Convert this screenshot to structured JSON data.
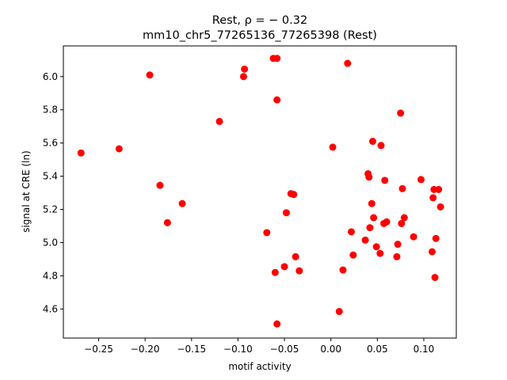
{
  "chart_data": {
    "type": "scatter",
    "title_main": "Rest, ρ = − 0.32",
    "title_sub": "mm10_chr5_77265136_77265398 (Rest)",
    "xlabel": "motif activity",
    "ylabel": "signal at CRE (ln)",
    "xlim": [
      -0.288,
      0.135
    ],
    "ylim": [
      4.425,
      6.185
    ],
    "xticks": [
      -0.25,
      -0.2,
      -0.15,
      -0.1,
      -0.05,
      0.0,
      0.05,
      0.1
    ],
    "xtick_labels": [
      "−0.25",
      "−0.20",
      "−0.15",
      "−0.10",
      "−0.05",
      "0.00",
      "0.05",
      "0.10"
    ],
    "yticks": [
      4.6,
      4.8,
      5.0,
      5.2,
      5.4,
      5.6,
      5.8,
      6.0
    ],
    "ytick_labels": [
      "4.6",
      "4.8",
      "5.0",
      "5.2",
      "5.4",
      "5.6",
      "5.8",
      "6.0"
    ],
    "grid": false,
    "marker_color": "#ff0000",
    "points": [
      [
        -0.269,
        5.54
      ],
      [
        -0.228,
        5.565
      ],
      [
        -0.195,
        6.01
      ],
      [
        -0.184,
        5.345
      ],
      [
        -0.176,
        5.12
      ],
      [
        -0.16,
        5.235
      ],
      [
        -0.12,
        5.73
      ],
      [
        -0.094,
        6.0
      ],
      [
        -0.093,
        6.045
      ],
      [
        -0.062,
        6.11
      ],
      [
        -0.058,
        6.11
      ],
      [
        -0.058,
        5.86
      ],
      [
        -0.069,
        5.06
      ],
      [
        -0.06,
        4.82
      ],
      [
        -0.05,
        4.855
      ],
      [
        -0.048,
        5.18
      ],
      [
        -0.043,
        5.295
      ],
      [
        -0.04,
        5.29
      ],
      [
        -0.038,
        4.915
      ],
      [
        -0.034,
        4.83
      ],
      [
        -0.058,
        4.51
      ],
      [
        0.002,
        5.575
      ],
      [
        0.009,
        4.585
      ],
      [
        0.013,
        4.835
      ],
      [
        0.018,
        6.08
      ],
      [
        0.022,
        5.065
      ],
      [
        0.024,
        4.925
      ],
      [
        0.037,
        5.015
      ],
      [
        0.04,
        5.415
      ],
      [
        0.041,
        5.395
      ],
      [
        0.042,
        5.09
      ],
      [
        0.044,
        5.235
      ],
      [
        0.045,
        5.61
      ],
      [
        0.046,
        5.15
      ],
      [
        0.049,
        4.975
      ],
      [
        0.053,
        4.935
      ],
      [
        0.054,
        5.585
      ],
      [
        0.057,
        5.115
      ],
      [
        0.058,
        5.375
      ],
      [
        0.06,
        5.125
      ],
      [
        0.071,
        4.915
      ],
      [
        0.072,
        4.99
      ],
      [
        0.075,
        5.78
      ],
      [
        0.076,
        5.115
      ],
      [
        0.077,
        5.325
      ],
      [
        0.079,
        5.15
      ],
      [
        0.089,
        5.035
      ],
      [
        0.097,
        5.38
      ],
      [
        0.109,
        4.945
      ],
      [
        0.11,
        5.27
      ],
      [
        0.111,
        5.32
      ],
      [
        0.112,
        4.79
      ],
      [
        0.113,
        5.025
      ],
      [
        0.116,
        5.32
      ],
      [
        0.118,
        5.215
      ]
    ]
  }
}
